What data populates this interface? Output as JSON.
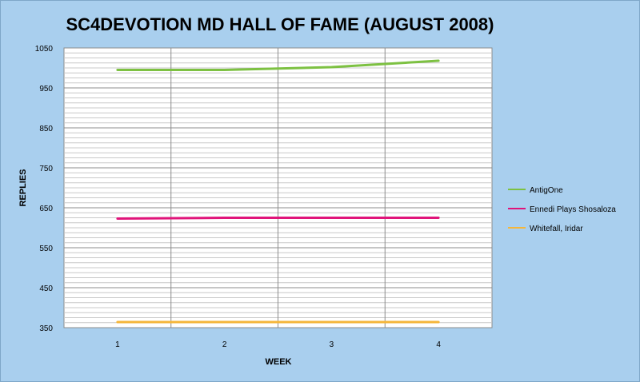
{
  "chart_data": {
    "type": "line",
    "title": "SC4DEVOTION MD HALL OF FAME (AUGUST 2008)",
    "xlabel": "WEEK",
    "ylabel": "REPLIES",
    "categories": [
      "1",
      "2",
      "3",
      "4"
    ],
    "ylim": [
      350,
      1050
    ],
    "yticks": [
      350,
      450,
      550,
      650,
      750,
      850,
      950,
      1050
    ],
    "grid": true,
    "legend_position": "right",
    "series": [
      {
        "name": "AntigOne",
        "color": "#7dc142",
        "values": [
          995,
          995,
          1002,
          1018
        ]
      },
      {
        "name": "Ennedi Plays  Shosaloza",
        "color": "#e0147a",
        "values": [
          623,
          625,
          625,
          625
        ]
      },
      {
        "name": "Whitefall, Iridar",
        "color": "#f5b63a",
        "values": [
          364,
          364,
          364,
          364
        ]
      }
    ]
  }
}
